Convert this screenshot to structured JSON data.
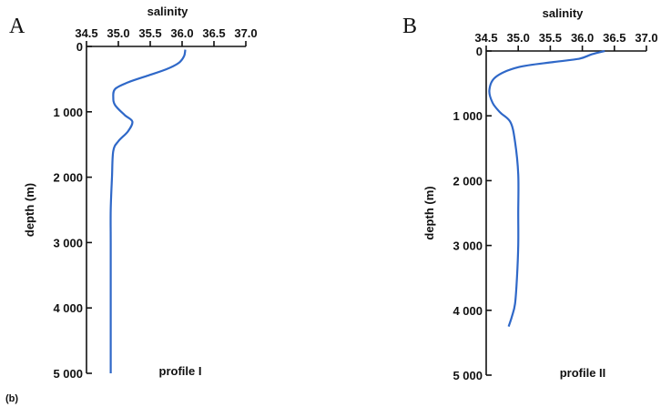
{
  "figure_note": "(b)",
  "chart_data": [
    {
      "type": "line",
      "panel_label": "A",
      "title": "",
      "xlabel": "salinity",
      "ylabel": "depth (m)",
      "annotation": "profile I",
      "x_ticks": [
        "34.5",
        "35.0",
        "35.5",
        "36.0",
        "36.5",
        "37.0"
      ],
      "y_ticks": [
        "0",
        "1 000",
        "2 000",
        "3 000",
        "4 000",
        "5 000"
      ],
      "xlim": [
        34.5,
        37.0
      ],
      "ylim": [
        0,
        5000
      ],
      "grid": false,
      "series": [
        {
          "color": "#2f68c8",
          "x": [
            36.05,
            36.03,
            35.95,
            35.75,
            35.45,
            35.15,
            34.95,
            34.92,
            34.95,
            35.1,
            35.22,
            35.15,
            35.0,
            34.92,
            34.9,
            34.88,
            34.88,
            34.88,
            34.88
          ],
          "y": [
            50,
            150,
            250,
            350,
            450,
            550,
            650,
            780,
            900,
            1050,
            1150,
            1300,
            1450,
            1600,
            2000,
            2500,
            3000,
            4000,
            5000
          ]
        }
      ]
    },
    {
      "type": "line",
      "panel_label": "B",
      "title": "",
      "xlabel": "salinity",
      "ylabel": "depth (m)",
      "annotation": "profile II",
      "x_ticks": [
        "34.5",
        "35.0",
        "35.5",
        "36.0",
        "36.5",
        "37.0"
      ],
      "y_ticks": [
        "0",
        "1 000",
        "2 000",
        "3 000",
        "4 000",
        "5 000"
      ],
      "xlim": [
        34.5,
        37.0
      ],
      "ylim": [
        0,
        5000
      ],
      "grid": false,
      "series": [
        {
          "color": "#2f68c8",
          "x": [
            36.35,
            36.15,
            35.95,
            35.55,
            35.0,
            34.65,
            34.55,
            34.6,
            34.72,
            34.88,
            34.95,
            35.0,
            35.0,
            35.0,
            34.98,
            34.95,
            34.9,
            34.85
          ],
          "y": [
            0,
            50,
            120,
            170,
            250,
            400,
            600,
            800,
            950,
            1100,
            1400,
            1900,
            2500,
            3000,
            3500,
            3900,
            4100,
            4250
          ]
        }
      ]
    }
  ]
}
